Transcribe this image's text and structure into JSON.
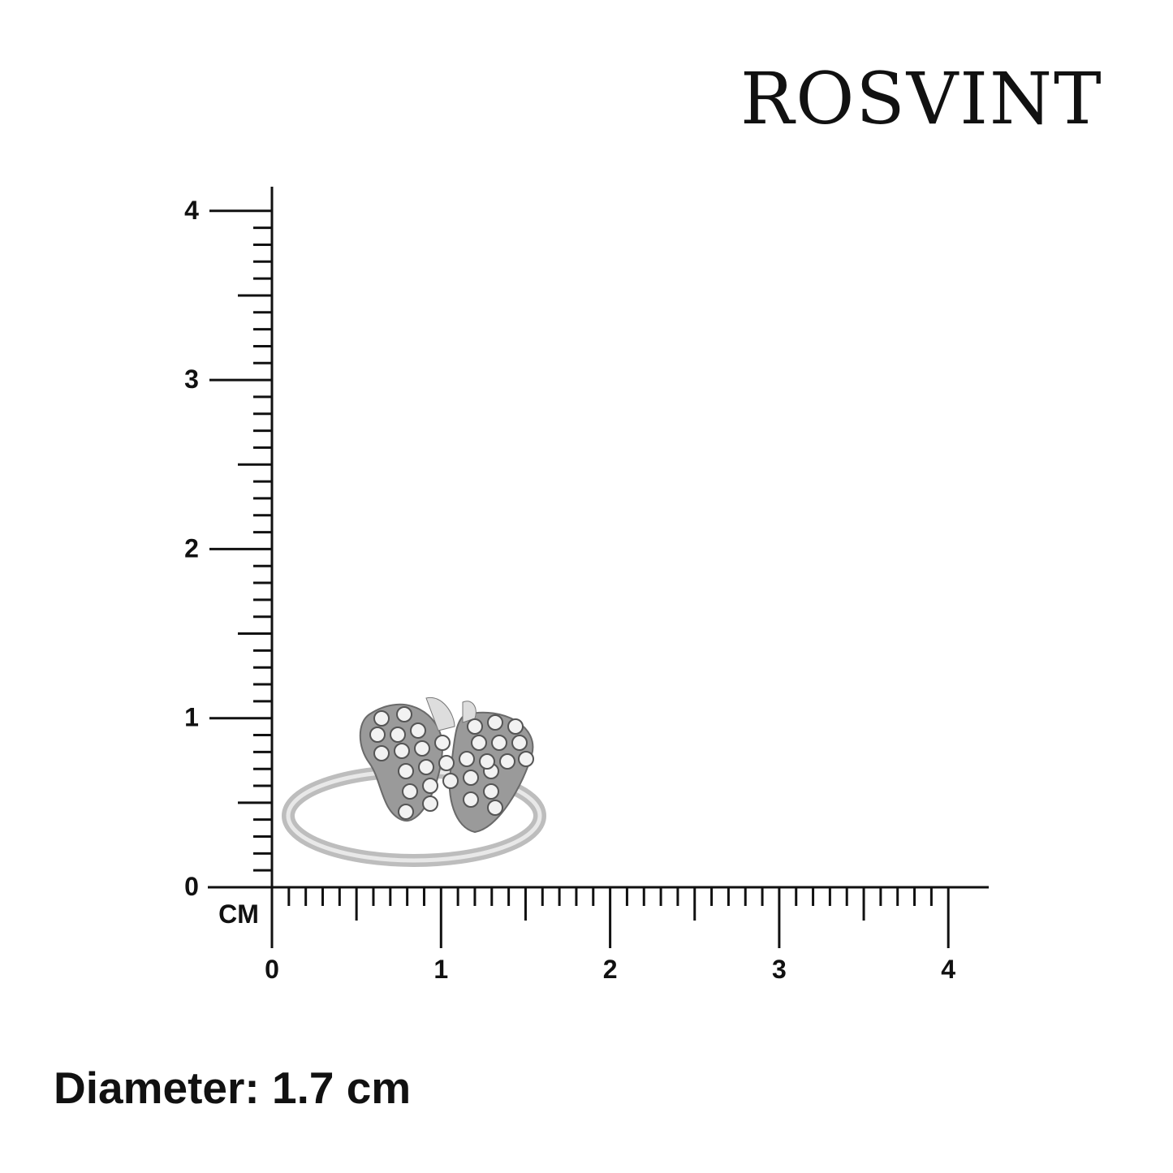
{
  "brand": {
    "logo_text": "ROSVINT"
  },
  "ruler": {
    "unit_label": "CM",
    "x_tick_labels": [
      "0",
      "1",
      "2",
      "3",
      "4"
    ],
    "y_tick_labels": [
      "0",
      "1",
      "2",
      "3",
      "4"
    ],
    "range_cm": [
      0,
      4
    ],
    "minor_step_cm": 0.1
  },
  "product": {
    "type": "ring",
    "motif": "butterfly",
    "metal_color": "#c9c9c9"
  },
  "caption": {
    "text": "Diameter: 1.7 cm"
  }
}
